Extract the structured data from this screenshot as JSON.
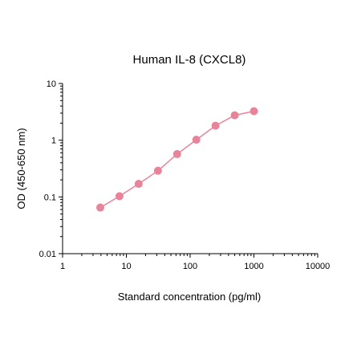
{
  "chart_data": {
    "type": "line",
    "title": "Human IL-8 (CXCL8)",
    "xlabel": "Standard concentration (pg/ml)",
    "ylabel": "OD (450-650 nm)",
    "xscale": "log",
    "yscale": "log",
    "xlim": [
      1,
      10000
    ],
    "ylim": [
      0.01,
      10
    ],
    "x_ticks": [
      1,
      10,
      100,
      1000,
      10000
    ],
    "x_tick_labels": [
      "1",
      "10",
      "100",
      "1000",
      "10000"
    ],
    "y_ticks": [
      0.01,
      0.1,
      1,
      10
    ],
    "y_tick_labels": [
      "0.01",
      "0.1",
      "1",
      "10"
    ],
    "grid": false,
    "series": [
      {
        "color": "#e8849a",
        "x": [
          3.9,
          7.8,
          15.6,
          31.3,
          62.5,
          125,
          250,
          500,
          1000
        ],
        "y": [
          0.065,
          0.103,
          0.17,
          0.29,
          0.57,
          1.02,
          1.8,
          2.75,
          3.25
        ]
      }
    ]
  }
}
